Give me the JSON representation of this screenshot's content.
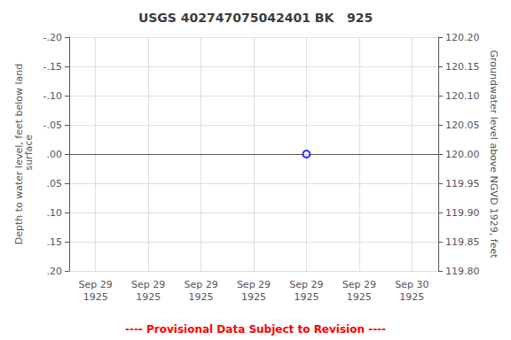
{
  "chart_data": {
    "type": "scatter",
    "title": "USGS 402747075042401 BK   925",
    "ylabel": "Depth to water level, feet below land\n surface",
    "y2label": "Groundwater level above NGVD 1929, feet",
    "categories": [
      "Sep 29\n1925",
      "Sep 29\n1925",
      "Sep 29\n1925",
      "Sep 29\n1925",
      "Sep 29\n1925",
      "Sep 29\n1925",
      "Sep 30\n1925"
    ],
    "series": [
      {
        "values": [
          null,
          null,
          null,
          null,
          0.0,
          null,
          null
        ],
        "color": "blue",
        "marker": "circle"
      }
    ],
    "ylim": [
      0.2,
      -0.2
    ],
    "yticks": [
      {
        "value": -0.2,
        "label": "-.20"
      },
      {
        "value": -0.15,
        "label": "-.15"
      },
      {
        "value": -0.1,
        "label": "-.10"
      },
      {
        "value": -0.05,
        "label": "-.05"
      },
      {
        "value": 0.0,
        "label": ".00"
      },
      {
        "value": 0.05,
        "label": ".05"
      },
      {
        "value": 0.1,
        "label": ".10"
      },
      {
        "value": 0.15,
        "label": ".15"
      },
      {
        "value": 0.2,
        "label": ".20"
      }
    ],
    "y2lim": [
      119.8,
      120.2
    ],
    "y2ticks": [
      {
        "value": 119.8,
        "label": "119.80"
      },
      {
        "value": 119.85,
        "label": "119.85"
      },
      {
        "value": 119.9,
        "label": "119.90"
      },
      {
        "value": 119.95,
        "label": "119.95"
      },
      {
        "value": 120.0,
        "label": "120.00"
      },
      {
        "value": 120.05,
        "label": "120.05"
      },
      {
        "value": 120.1,
        "label": "120.10"
      },
      {
        "value": 120.15,
        "label": "120.15"
      },
      {
        "value": 120.2,
        "label": "120.20"
      }
    ],
    "grid": true,
    "annotations": [
      {
        "text": "---- Provisional Data Subject to Revision ----",
        "color": "red"
      }
    ]
  }
}
